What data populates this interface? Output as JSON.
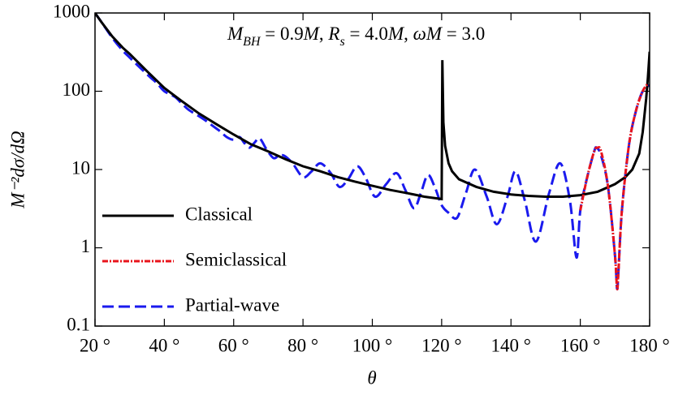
{
  "chart_data": {
    "type": "line",
    "x_label": "θ",
    "y_label": "M⁻²dσ/dΩ",
    "annotation": [
      {
        "text": "M",
        "italic": true
      },
      {
        "text": "BH",
        "italic": true,
        "sub": true
      },
      {
        "text": " = 0.9"
      },
      {
        "text": "M",
        "italic": true
      },
      {
        "text": ", "
      },
      {
        "text": "R",
        "italic": true
      },
      {
        "text": "s",
        "italic": true,
        "sub": true
      },
      {
        "text": " = 4.0"
      },
      {
        "text": "M",
        "italic": true
      },
      {
        "text": ", "
      },
      {
        "text": "ωM",
        "italic": true
      },
      {
        "text": " = 3.0"
      }
    ],
    "xlim": [
      20,
      180
    ],
    "ylim": [
      0.1,
      1000
    ],
    "log_y": true,
    "xticks": [
      {
        "value": 20,
        "label": "20 °"
      },
      {
        "value": 40,
        "label": "40 °"
      },
      {
        "value": 60,
        "label": "60 °"
      },
      {
        "value": 80,
        "label": "80 °"
      },
      {
        "value": 100,
        "label": "100 °"
      },
      {
        "value": 120,
        "label": "120 °"
      },
      {
        "value": 140,
        "label": "140 °"
      },
      {
        "value": 160,
        "label": "160 °"
      },
      {
        "value": 180,
        "label": "180 °"
      }
    ],
    "yticks": [
      0.1,
      1,
      10,
      100,
      1000
    ],
    "legend": "lower left",
    "series": [
      {
        "name": "Classical",
        "color": "#000000",
        "dash": "solid",
        "smooth": false,
        "x": [
          20,
          22,
          25,
          28,
          30,
          35,
          40,
          45,
          50,
          55,
          60,
          65,
          70,
          75,
          80,
          85,
          90,
          95,
          100,
          105,
          110,
          115,
          120,
          120.2,
          120.5,
          121,
          122,
          123,
          125,
          130,
          135,
          140,
          145,
          150,
          155,
          160,
          165,
          170,
          173,
          175,
          177,
          178,
          179,
          179.5,
          180
        ],
        "values": [
          1000,
          750,
          500,
          360,
          300,
          180,
          110,
          75,
          52,
          38,
          28,
          21,
          17,
          13.5,
          11,
          9.5,
          8,
          7,
          6.2,
          5.5,
          5,
          4.5,
          4.2,
          250,
          40,
          20,
          12,
          9.5,
          7.5,
          6,
          5.2,
          4.8,
          4.6,
          4.5,
          4.5,
          4.7,
          5.2,
          6.5,
          8,
          10,
          16,
          30,
          80,
          150,
          320
        ]
      },
      {
        "name": "Semiclassical",
        "color": "#e8141c",
        "dash": "dashdot",
        "smooth": true,
        "x": [
          160,
          162,
          164,
          165,
          166,
          168,
          170,
          170.6,
          171,
          172,
          174,
          176,
          178,
          179.5
        ],
        "values": [
          3,
          8,
          17,
          19,
          17,
          6,
          0.8,
          0.3,
          0.5,
          3,
          20,
          55,
          100,
          125
        ]
      },
      {
        "name": "Partial-wave",
        "color": "#1a1aee",
        "dash": "dashed",
        "smooth": true,
        "x": [
          20,
          22,
          25,
          28,
          30,
          33,
          36,
          38,
          40,
          43,
          45,
          47,
          50,
          52,
          54,
          56,
          58,
          60,
          61.7,
          63,
          64.5,
          66,
          67.5,
          69.5,
          71.5,
          73,
          74.6,
          77,
          80,
          82.5,
          85,
          88,
          90.5,
          93,
          95.6,
          98,
          100.8,
          104,
          107,
          109.5,
          112,
          114,
          116,
          118,
          120,
          122,
          124.4,
          127,
          129.6,
          133,
          135.9,
          139,
          141.3,
          144,
          147.2,
          151,
          154.2,
          157,
          158.9,
          160,
          162,
          164,
          164.7,
          166,
          168,
          170,
          170.6,
          171,
          172,
          174,
          176,
          178,
          180
        ],
        "values": [
          1000,
          750,
          480,
          330,
          270,
          200,
          150,
          125,
          100,
          85,
          70,
          58,
          48,
          42,
          36,
          31,
          26,
          24,
          26,
          22,
          19,
          22,
          25,
          18,
          14,
          15,
          15,
          12,
          8,
          9.5,
          12,
          9,
          6,
          7.5,
          11,
          8,
          4.5,
          6.5,
          9,
          5.5,
          3.2,
          5,
          8.5,
          6,
          3.5,
          2.8,
          2.4,
          5,
          10,
          4.5,
          2,
          4.5,
          9.5,
          4,
          1.2,
          5,
          12,
          4,
          0.75,
          3,
          8,
          17,
          19,
          15,
          6,
          0.8,
          0.3,
          0.5,
          3,
          20,
          55,
          100,
          120
        ]
      }
    ]
  }
}
